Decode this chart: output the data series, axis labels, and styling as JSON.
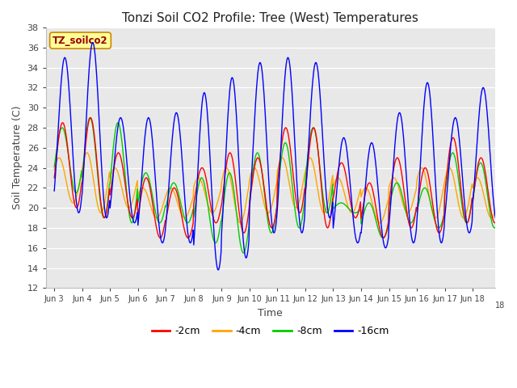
{
  "title": "Tonzi Soil CO2 Profile: Tree (West) Temperatures",
  "xlabel": "Time",
  "ylabel": "Soil Temperature (C)",
  "ylim": [
    12,
    38
  ],
  "yticks": [
    12,
    14,
    16,
    18,
    20,
    22,
    24,
    26,
    28,
    30,
    32,
    34,
    36,
    38
  ],
  "plot_bg_color": "#e8e8e8",
  "legend_label": "TZ_soilco2",
  "legend_box_color": "#ffff99",
  "legend_box_border": "#cc8800",
  "series": [
    {
      "label": "-2cm",
      "color": "#ff0000"
    },
    {
      "label": "-4cm",
      "color": "#ffa500"
    },
    {
      "label": "-8cm",
      "color": "#00cc00"
    },
    {
      "label": "-16cm",
      "color": "#0000ff"
    }
  ],
  "xtick_labels": [
    "Jun 3",
    "Jun 4",
    "Jun 5",
    "Jun 6",
    "Jun 7",
    "Jun 8",
    "Jun 9",
    "Jun 10",
    "Jun 11",
    "Jun 12",
    "Jun 13",
    "Jun 14",
    "Jun 15",
    "Jun 16",
    "Jun 17",
    "Jun 18"
  ],
  "n_days": 16,
  "pts": 48,
  "phase_2cm": -0.3,
  "phase_4cm": 0.5,
  "phase_8cm": -0.2,
  "phase_16cm": -0.8,
  "day_peaks_2cm": [
    28.5,
    29.0,
    25.5,
    23.0,
    22.0,
    24.0,
    25.5,
    25.0,
    28.0,
    28.0,
    24.5,
    22.5,
    25.0,
    24.0,
    27.0,
    25.0
  ],
  "day_troughs_2cm": [
    20.0,
    19.0,
    19.0,
    17.0,
    17.0,
    18.5,
    17.5,
    18.0,
    19.5,
    18.0,
    19.0,
    17.0,
    18.0,
    17.5,
    18.5,
    18.5
  ],
  "day_peaks_4cm": [
    25.0,
    25.5,
    24.0,
    22.0,
    22.0,
    23.0,
    24.0,
    24.0,
    25.0,
    25.0,
    23.0,
    22.0,
    23.0,
    24.0,
    24.0,
    23.0
  ],
  "day_troughs_4cm": [
    20.5,
    19.5,
    20.0,
    19.0,
    19.0,
    19.5,
    18.5,
    19.5,
    20.0,
    19.5,
    19.5,
    18.5,
    19.5,
    19.0,
    19.0,
    19.0
  ],
  "day_peaks_8cm": [
    28.0,
    29.0,
    28.5,
    23.5,
    22.5,
    23.0,
    23.5,
    25.5,
    26.5,
    28.0,
    20.5,
    20.5,
    22.5,
    22.0,
    25.5,
    24.5
  ],
  "day_troughs_8cm": [
    21.5,
    19.0,
    18.5,
    18.5,
    18.5,
    16.5,
    15.5,
    17.5,
    18.0,
    19.5,
    19.5,
    17.0,
    18.5,
    18.0,
    18.5,
    18.0
  ],
  "day_peaks_16cm": [
    35.0,
    36.5,
    29.0,
    29.0,
    29.5,
    31.5,
    33.0,
    34.5,
    35.0,
    34.5,
    27.0,
    26.5,
    29.5,
    32.5,
    29.0,
    32.0
  ],
  "day_troughs_16cm": [
    19.5,
    19.0,
    18.5,
    16.5,
    16.5,
    13.8,
    15.0,
    17.5,
    17.5,
    19.0,
    16.5,
    16.0,
    16.5,
    16.5,
    17.5,
    18.5
  ]
}
